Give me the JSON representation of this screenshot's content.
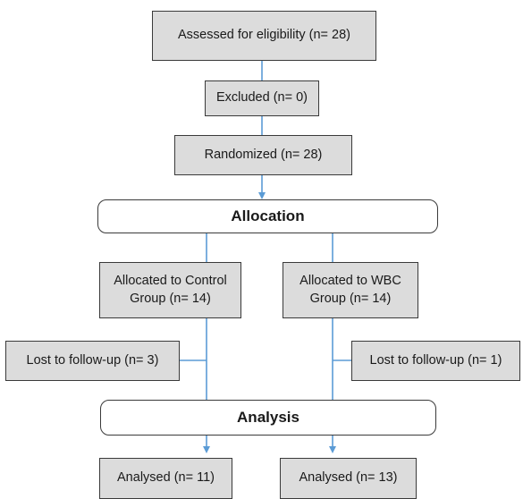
{
  "flowchart": {
    "assessed": "Assessed for eligibility (n= 28)",
    "excluded": "Excluded (n= 0)",
    "randomized": "Randomized (n= 28)",
    "allocation_header": "Allocation",
    "allocated_control": "Allocated to Control\nGroup (n= 14)",
    "allocated_wbc": "Allocated to WBC\nGroup (n= 14)",
    "lost_control": "Lost to follow-up (n= 3)",
    "lost_wbc": "Lost to follow-up (n= 1)",
    "analysis_header": "Analysis",
    "analysed_control": "Analysed (n= 11)",
    "analysed_wbc": "Analysed (n= 13)"
  },
  "colors": {
    "connector": "#5b9bd5",
    "box_fill": "#dcdcdc",
    "box_border": "#3a3a3a"
  }
}
